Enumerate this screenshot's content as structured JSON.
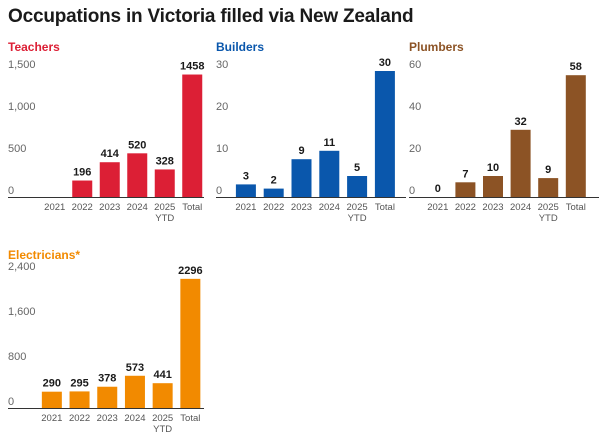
{
  "title": "Occupations in Victoria filled via New Zealand",
  "chart_data": [
    {
      "type": "bar",
      "title": "Teachers",
      "color": "#dc1f35",
      "categories": [
        "2021",
        "2022",
        "2023",
        "2024",
        "2025 YTD",
        "Total"
      ],
      "values": [
        null,
        196,
        414,
        520,
        328,
        1458
      ],
      "value_labels": [
        "",
        "196",
        "414",
        "520",
        "328",
        "1458"
      ],
      "yticks": [
        0,
        500,
        1000,
        1500
      ],
      "ytick_labels": [
        "0",
        "500",
        "1,000",
        "1,500"
      ],
      "ylim": [
        0,
        1500
      ]
    },
    {
      "type": "bar",
      "title": "Builders",
      "color": "#0a57ac",
      "categories": [
        "2021",
        "2022",
        "2023",
        "2024",
        "2025 YTD",
        "Total"
      ],
      "values": [
        3,
        2,
        9,
        11,
        5,
        30
      ],
      "value_labels": [
        "3",
        "2",
        "9",
        "11",
        "5",
        "30"
      ],
      "yticks": [
        0,
        10,
        20,
        30
      ],
      "ytick_labels": [
        "0",
        "10",
        "20",
        "30"
      ],
      "ylim": [
        0,
        30
      ]
    },
    {
      "type": "bar",
      "title": "Plumbers",
      "color": "#8c5325",
      "categories": [
        "2021",
        "2022",
        "2023",
        "2024",
        "2025 YTD",
        "Total"
      ],
      "values": [
        0,
        7,
        10,
        32,
        9,
        58
      ],
      "value_labels": [
        "0",
        "7",
        "10",
        "32",
        "9",
        "58"
      ],
      "yticks": [
        0,
        20,
        40,
        60
      ],
      "ytick_labels": [
        "0",
        "20",
        "40",
        "60"
      ],
      "ylim": [
        0,
        60
      ]
    },
    {
      "type": "bar",
      "title": "Electricians*",
      "color": "#f28a00",
      "categories": [
        "2021",
        "2022",
        "2023",
        "2024",
        "2025 YTD",
        "Total"
      ],
      "values": [
        290,
        295,
        378,
        573,
        441,
        2296
      ],
      "value_labels": [
        "290",
        "295",
        "378",
        "573",
        "441",
        "2296"
      ],
      "yticks": [
        0,
        800,
        1600,
        2400
      ],
      "ytick_labels": [
        "0",
        "800",
        "1,600",
        "2,400"
      ],
      "ylim": [
        0,
        2400
      ]
    }
  ]
}
